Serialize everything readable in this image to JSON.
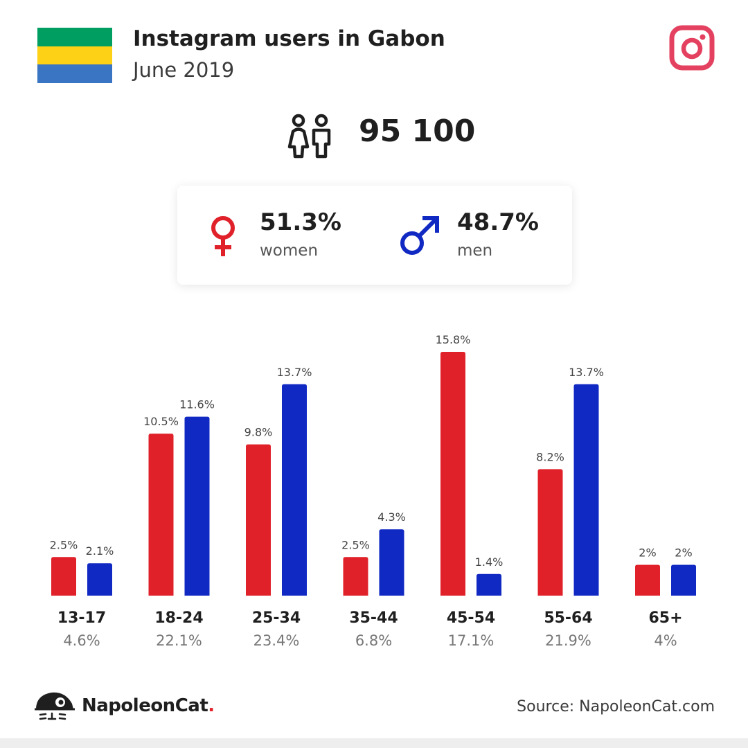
{
  "header": {
    "title": "Instagram users in Gabon",
    "subtitle": "June 2019",
    "flag_colors": [
      "#009e60",
      "#fcd116",
      "#3a75c4"
    ],
    "logo_icon": "instagram-icon",
    "logo_color": "#e4405f"
  },
  "total": {
    "icon": "people-icon",
    "value": "95 100"
  },
  "gender": {
    "women": {
      "icon": "female-symbol-icon",
      "pct": "51.3%",
      "label": "women",
      "color": "#e0212a"
    },
    "men": {
      "icon": "male-symbol-icon",
      "pct": "48.7%",
      "label": "men",
      "color": "#1129c3"
    }
  },
  "chart_data": {
    "type": "bar",
    "categories": [
      "13-17",
      "18-24",
      "25-34",
      "35-44",
      "45-54",
      "55-64",
      "65+"
    ],
    "category_totals": [
      "4.6%",
      "22.1%",
      "23.4%",
      "6.8%",
      "17.1%",
      "21.9%",
      "4%"
    ],
    "series": [
      {
        "color": "#e0212a",
        "values": [
          2.5,
          10.5,
          9.8,
          2.5,
          15.8,
          8.2,
          2
        ],
        "labels": [
          "2.5%",
          "10.5%",
          "9.8%",
          "2.5%",
          "15.8%",
          "8.2%",
          "2%"
        ]
      },
      {
        "color": "#1129c3",
        "values": [
          2.1,
          11.6,
          13.7,
          4.3,
          1.4,
          13.7,
          2
        ],
        "labels": [
          "2.1%",
          "11.6%",
          "13.7%",
          "4.3%",
          "1.4%",
          "13.7%",
          "2%"
        ]
      }
    ],
    "ylim": [
      0,
      15.8
    ],
    "grid": false
  },
  "footer": {
    "brand_icon": "napoleoncat-logo-icon",
    "brand_name": "NapoleonCat",
    "brand_dot": ".",
    "source": "Source: NapoleonCat.com"
  }
}
